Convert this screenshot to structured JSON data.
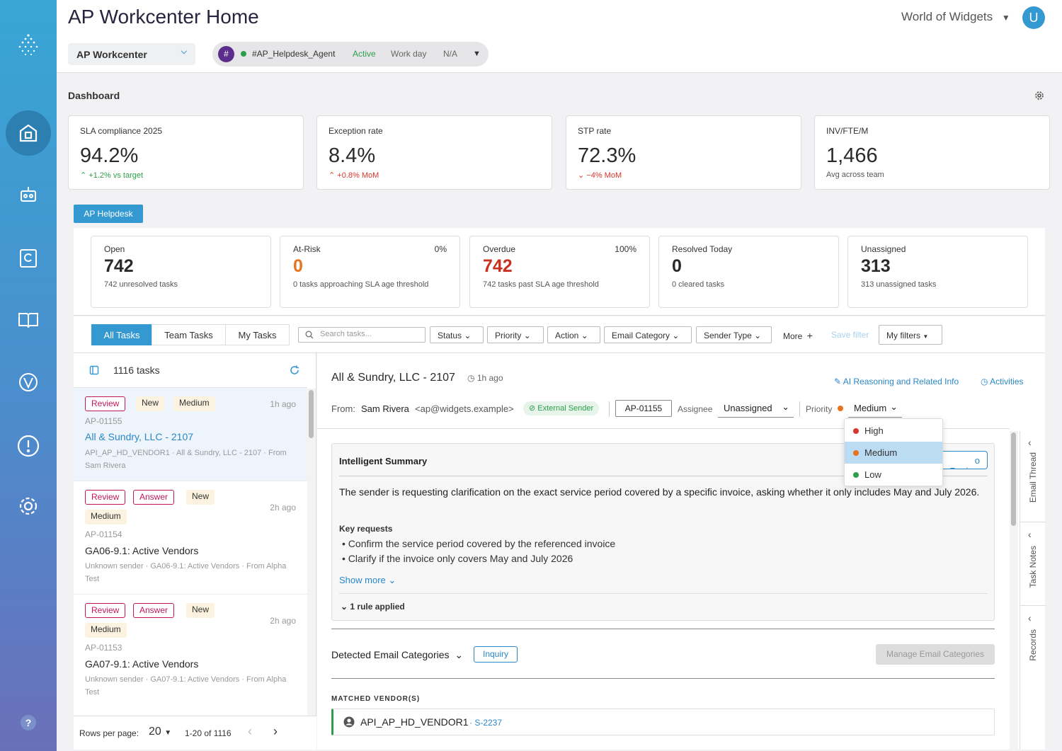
{
  "app": {
    "title": "AP Workcenter Home",
    "org": "World of Widgets",
    "avatar": "U",
    "workspace": "AP Workcenter"
  },
  "agent": {
    "hash": "#",
    "name": "#AP_Helpdesk_Agent",
    "status": "Active",
    "shift": "Work day",
    "na": "N/A"
  },
  "dashboard": {
    "title": "Dashboard",
    "kpis": [
      {
        "label": "SLA compliance 2025",
        "value": "94.2%",
        "sub": "+1.2% vs target"
      },
      {
        "label": "Exception rate",
        "value": "8.4%",
        "sub": "+0.8% MoM"
      },
      {
        "label": "STP rate",
        "value": "72.3%",
        "sub": "−4% MoM"
      },
      {
        "label": "INV/FTE/M",
        "value": "1,466",
        "sub": "Avg across team"
      }
    ]
  },
  "helpdesk": {
    "tag": "AP Helpdesk",
    "stats": [
      {
        "label": "Open",
        "value": "742",
        "sub": "742 unresolved tasks",
        "pct": ""
      },
      {
        "label": "At-Risk",
        "value": "0",
        "sub": "0 tasks approaching SLA age threshold",
        "pct": "0%"
      },
      {
        "label": "Overdue",
        "value": "742",
        "sub": "742 tasks past SLA age threshold",
        "pct": "100%"
      },
      {
        "label": "Resolved Today",
        "value": "0",
        "sub": "0 cleared tasks",
        "pct": ""
      },
      {
        "label": "Unassigned",
        "value": "313",
        "sub": "313 unassigned tasks",
        "pct": ""
      }
    ]
  },
  "filters": {
    "tabs": [
      "All Tasks",
      "Team Tasks",
      "My Tasks"
    ],
    "search_placeholder": "Search tasks...",
    "dropdowns": [
      "Status",
      "Priority",
      "Action",
      "Email Category",
      "Sender Type"
    ],
    "more": "More",
    "save": "Save filter",
    "my": "My filters"
  },
  "list": {
    "count": "1116 tasks",
    "tasks": [
      {
        "badges": [
          "Review",
          "New",
          "Medium"
        ],
        "ago": "1h ago",
        "id": "AP-01155",
        "name": "All & Sundry, LLC - 2107",
        "desc": "API_AP_HD_VENDOR1 · All & Sundry, LLC - 2107 · From Sam Rivera"
      },
      {
        "badges": [
          "Review",
          "Answer",
          "New",
          "Medium"
        ],
        "ago": "2h ago",
        "id": "AP-01154",
        "name": "GA06-9.1: Active Vendors",
        "desc": "Unknown sender · GA06-9.1: Active Vendors · From Alpha Test"
      },
      {
        "badges": [
          "Review",
          "Answer",
          "New",
          "Medium"
        ],
        "ago": "2h ago",
        "id": "AP-01153",
        "name": "GA07-9.1: Active Vendors",
        "desc": "Unknown sender · GA07-9.1: Active Vendors · From Alpha Test"
      }
    ],
    "rows_label": "Rows per page:",
    "rows": "20",
    "range": "1-20 of 1116"
  },
  "detail": {
    "title": "All & Sundry, LLC - 2107",
    "ago": "1h ago",
    "ai": "AI Reasoning and Related Info",
    "activities": "Activities",
    "from_label": "From:",
    "from_name": "Sam Rivera",
    "from_email": "<ap@widgets.example>",
    "ext": "External Sender",
    "id": "AP-01155",
    "assignee_label": "Assignee",
    "assignee": "Unassigned",
    "priority_label": "Priority",
    "priority": "Medium",
    "priority_options": [
      "High",
      "Medium",
      "Low"
    ],
    "summary": {
      "title": "Intelligent Summary",
      "review_btn": "o Review",
      "text": "The sender is requesting clarification on the exact service period covered by a specific invoice, asking whether it only includes May and July 2026.",
      "kr": "Key requests",
      "items": [
        "Confirm the service period covered by the referenced invoice",
        "Clarify if the invoice only covers May and July 2026"
      ],
      "more": "Show more",
      "rule": "1 rule applied"
    },
    "cat_label": "Detected Email Categories",
    "cat": "Inquiry",
    "manage": "Manage Email Categories",
    "vendor_label": "MATCHED VENDOR(S)",
    "vendor": "API_AP_HD_VENDOR1",
    "vendor_id": "· S-2237"
  },
  "sidetabs": [
    "Email Thread",
    "Task Notes",
    "Records"
  ],
  "colors": {
    "accent": "#3599d1",
    "review": "#c2185b",
    "high": "#d9362b",
    "medium": "#e8731c",
    "low": "#2e9e4a"
  }
}
